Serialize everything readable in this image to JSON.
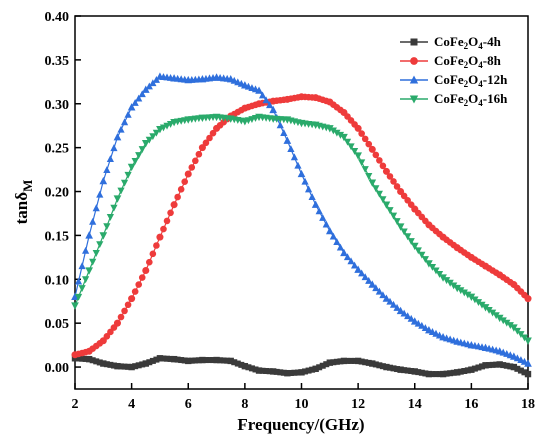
{
  "chart_data": {
    "type": "scatter",
    "xlabel": "Frequency/(GHz)",
    "ylabel": "tanδ",
    "ylabel_sub": "M",
    "xlim": [
      2,
      18
    ],
    "ylim": [
      -0.025,
      0.4
    ],
    "x_ticks": [
      "2",
      "4",
      "6",
      "8",
      "10",
      "12",
      "14",
      "16",
      "18"
    ],
    "y_ticks": [
      "0.00",
      "0.05",
      "0.10",
      "0.15",
      "0.20",
      "0.25",
      "0.30",
      "0.35",
      "0.40"
    ],
    "grid": false,
    "legend_position": "top-right",
    "series": [
      {
        "name": "CoFe2O4-4h",
        "label_parts": {
          "base": "CoFe",
          "s1": "2",
          "mid": "O",
          "s2": "4",
          "tail": "-4h"
        },
        "color": "#3a3a3a",
        "marker": "square",
        "x": [
          2.0,
          2.5,
          3.0,
          3.5,
          4.0,
          4.5,
          5.0,
          5.5,
          6.0,
          6.5,
          7.0,
          7.5,
          8.0,
          8.5,
          9.0,
          9.5,
          10.0,
          10.5,
          11.0,
          11.5,
          12.0,
          12.5,
          13.0,
          13.5,
          14.0,
          14.5,
          15.0,
          15.5,
          16.0,
          16.5,
          17.0,
          17.5,
          18.0
        ],
        "y": [
          0.01,
          0.009,
          0.004,
          0.001,
          0.0,
          0.004,
          0.01,
          0.009,
          0.007,
          0.008,
          0.008,
          0.007,
          0.001,
          -0.004,
          -0.005,
          -0.007,
          -0.006,
          -0.002,
          0.005,
          0.007,
          0.007,
          0.004,
          0.0,
          -0.003,
          -0.005,
          -0.008,
          -0.008,
          -0.006,
          -0.003,
          0.002,
          0.003,
          0.0,
          -0.008
        ]
      },
      {
        "name": "CoFe2O4-8h",
        "label_parts": {
          "base": "CoFe",
          "s1": "2",
          "mid": "O",
          "s2": "4",
          "tail": "-8h"
        },
        "color": "#ee3b3b",
        "marker": "circle",
        "x": [
          2.0,
          2.5,
          3.0,
          3.5,
          4.0,
          4.5,
          5.0,
          5.5,
          6.0,
          6.5,
          7.0,
          7.5,
          8.0,
          8.5,
          9.0,
          9.5,
          10.0,
          10.5,
          11.0,
          11.5,
          12.0,
          12.5,
          13.0,
          13.5,
          14.0,
          14.5,
          15.0,
          15.5,
          16.0,
          16.5,
          17.0,
          17.5,
          18.0
        ],
        "y": [
          0.014,
          0.018,
          0.03,
          0.05,
          0.078,
          0.11,
          0.148,
          0.185,
          0.22,
          0.25,
          0.272,
          0.286,
          0.295,
          0.3,
          0.303,
          0.305,
          0.308,
          0.307,
          0.302,
          0.29,
          0.272,
          0.248,
          0.223,
          0.2,
          0.18,
          0.162,
          0.148,
          0.136,
          0.125,
          0.115,
          0.105,
          0.094,
          0.078
        ]
      },
      {
        "name": "CoFe2O4-12h",
        "label_parts": {
          "base": "CoFe",
          "s1": "2",
          "mid": "O",
          "s2": "4",
          "tail": "-12h"
        },
        "color": "#2f6fdc",
        "marker": "triangle-up",
        "x": [
          2.0,
          2.5,
          3.0,
          3.5,
          4.0,
          4.5,
          5.0,
          5.5,
          6.0,
          6.5,
          7.0,
          7.5,
          8.0,
          8.5,
          9.0,
          9.5,
          10.0,
          10.5,
          11.0,
          11.5,
          12.0,
          12.5,
          13.0,
          13.5,
          14.0,
          14.5,
          15.0,
          15.5,
          16.0,
          16.5,
          17.0,
          17.5,
          18.0
        ],
        "y": [
          0.08,
          0.15,
          0.212,
          0.262,
          0.296,
          0.316,
          0.331,
          0.329,
          0.327,
          0.328,
          0.33,
          0.328,
          0.321,
          0.315,
          0.293,
          0.258,
          0.22,
          0.185,
          0.155,
          0.13,
          0.111,
          0.094,
          0.078,
          0.064,
          0.052,
          0.042,
          0.034,
          0.029,
          0.025,
          0.022,
          0.018,
          0.012,
          0.004
        ]
      },
      {
        "name": "CoFe2O4-16h",
        "label_parts": {
          "base": "CoFe",
          "s1": "2",
          "mid": "O",
          "s2": "4",
          "tail": "-16h"
        },
        "color": "#2aaa6b",
        "marker": "triangle-down",
        "x": [
          2.0,
          2.5,
          3.0,
          3.5,
          4.0,
          4.5,
          5.0,
          5.5,
          6.0,
          6.5,
          7.0,
          7.5,
          8.0,
          8.5,
          9.0,
          9.5,
          10.0,
          10.5,
          11.0,
          11.5,
          12.0,
          12.5,
          13.0,
          13.5,
          14.0,
          14.5,
          15.0,
          15.5,
          16.0,
          16.5,
          17.0,
          17.5,
          18.0
        ],
        "y": [
          0.07,
          0.11,
          0.15,
          0.192,
          0.228,
          0.255,
          0.271,
          0.279,
          0.282,
          0.284,
          0.285,
          0.283,
          0.28,
          0.285,
          0.283,
          0.282,
          0.278,
          0.276,
          0.272,
          0.262,
          0.241,
          0.21,
          0.185,
          0.16,
          0.138,
          0.118,
          0.102,
          0.09,
          0.08,
          0.068,
          0.056,
          0.045,
          0.03
        ]
      }
    ]
  }
}
